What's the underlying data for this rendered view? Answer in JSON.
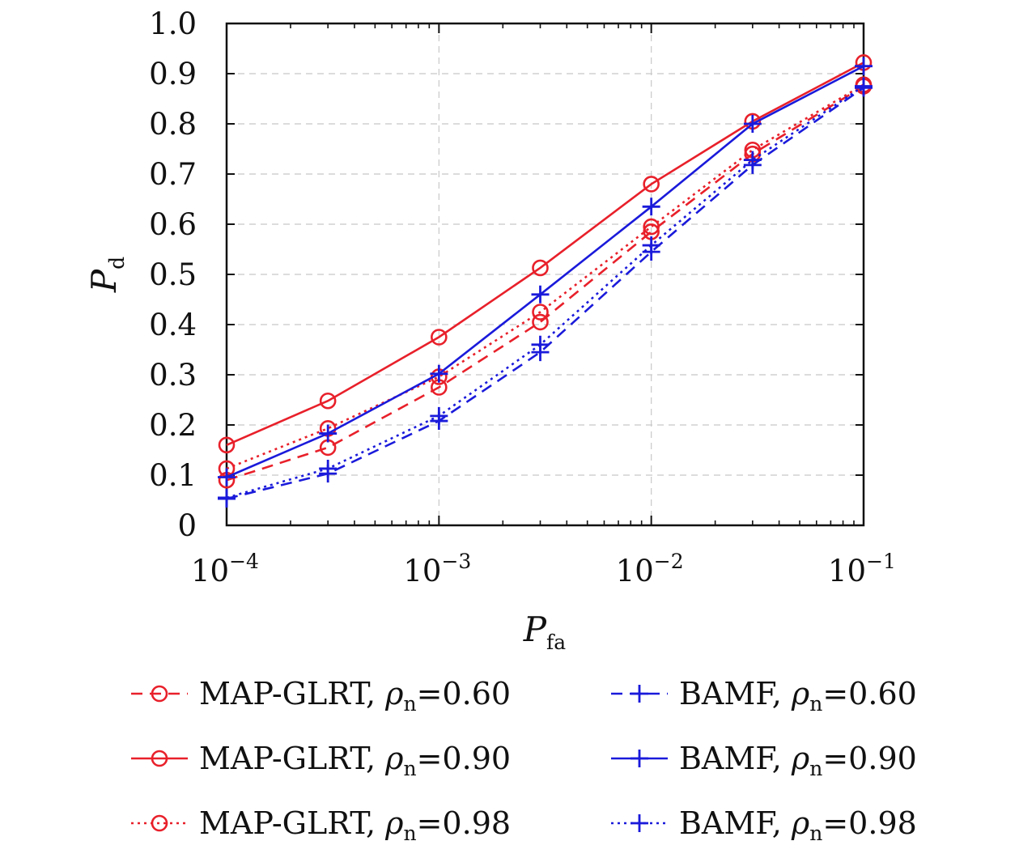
{
  "chart_data": {
    "type": "line",
    "xscale": "log",
    "xlim": [
      0.0001,
      0.1
    ],
    "ylim": [
      0,
      1
    ],
    "grid": true,
    "legend_position": "bottom",
    "xlabel": {
      "main": "P",
      "sub": "fa"
    },
    "ylabel": {
      "main": "P",
      "sub": "d"
    },
    "x_ticks": [
      {
        "value": 0.0001,
        "base": "10",
        "exp": "−4"
      },
      {
        "value": 0.001,
        "base": "10",
        "exp": "−3"
      },
      {
        "value": 0.01,
        "base": "10",
        "exp": "−2"
      },
      {
        "value": 0.1,
        "base": "10",
        "exp": "−1"
      }
    ],
    "y_ticks": [
      {
        "value": 0,
        "label": "0"
      },
      {
        "value": 0.1,
        "label": "0.1"
      },
      {
        "value": 0.2,
        "label": "0.2"
      },
      {
        "value": 0.3,
        "label": "0.3"
      },
      {
        "value": 0.4,
        "label": "0.4"
      },
      {
        "value": 0.5,
        "label": "0.5"
      },
      {
        "value": 0.6,
        "label": "0.6"
      },
      {
        "value": 0.7,
        "label": "0.7"
      },
      {
        "value": 0.8,
        "label": "0.8"
      },
      {
        "value": 0.9,
        "label": "0.9"
      },
      {
        "value": 1.0,
        "label": "1.0"
      }
    ],
    "x": [
      0.0001,
      0.0003,
      0.001,
      0.003,
      0.01,
      0.03,
      0.1
    ],
    "series": [
      {
        "name": "MAP-GLRT, ρn=0.60",
        "legend": {
          "label": "MAP-GLRT, ",
          "rho": "ρ",
          "sub": "n",
          "value": "=0.60"
        },
        "color": "#e8202a",
        "dash": "dashed",
        "marker": "circle",
        "values": [
          0.09,
          0.155,
          0.275,
          0.405,
          0.585,
          0.74,
          0.875
        ]
      },
      {
        "name": "MAP-GLRT, ρn=0.90",
        "legend": {
          "label": "MAP-GLRT, ",
          "rho": "ρ",
          "sub": "n",
          "value": "=0.90"
        },
        "color": "#e8202a",
        "dash": "solid",
        "marker": "circle",
        "values": [
          0.16,
          0.248,
          0.375,
          0.513,
          0.68,
          0.805,
          0.922
        ]
      },
      {
        "name": "MAP-GLRT, ρn=0.98",
        "legend": {
          "label": "MAP-GLRT, ",
          "rho": "ρ",
          "sub": "n",
          "value": "=0.98"
        },
        "color": "#e8202a",
        "dash": "dotted",
        "marker": "circle",
        "values": [
          0.113,
          0.193,
          0.296,
          0.425,
          0.595,
          0.748,
          0.878
        ]
      },
      {
        "name": "BAMF, ρn=0.60",
        "legend": {
          "label": "BAMF, ",
          "rho": "ρ",
          "sub": "n",
          "value": "=0.60"
        },
        "color": "#1a1adb",
        "dash": "dashed",
        "marker": "plus",
        "values": [
          0.053,
          0.103,
          0.208,
          0.345,
          0.545,
          0.718,
          0.872
        ]
      },
      {
        "name": "BAMF, ρn=0.90",
        "legend": {
          "label": "BAMF, ",
          "rho": "ρ",
          "sub": "n",
          "value": "=0.90"
        },
        "color": "#1a1adb",
        "dash": "solid",
        "marker": "plus",
        "values": [
          0.096,
          0.183,
          0.302,
          0.46,
          0.635,
          0.8,
          0.915
        ]
      },
      {
        "name": "BAMF, ρn=0.98",
        "legend": {
          "label": "BAMF, ",
          "rho": "ρ",
          "sub": "n",
          "value": "=0.98"
        },
        "color": "#1a1adb",
        "dash": "dotted",
        "marker": "plus",
        "values": [
          0.055,
          0.113,
          0.218,
          0.36,
          0.558,
          0.728,
          0.875
        ]
      }
    ]
  }
}
